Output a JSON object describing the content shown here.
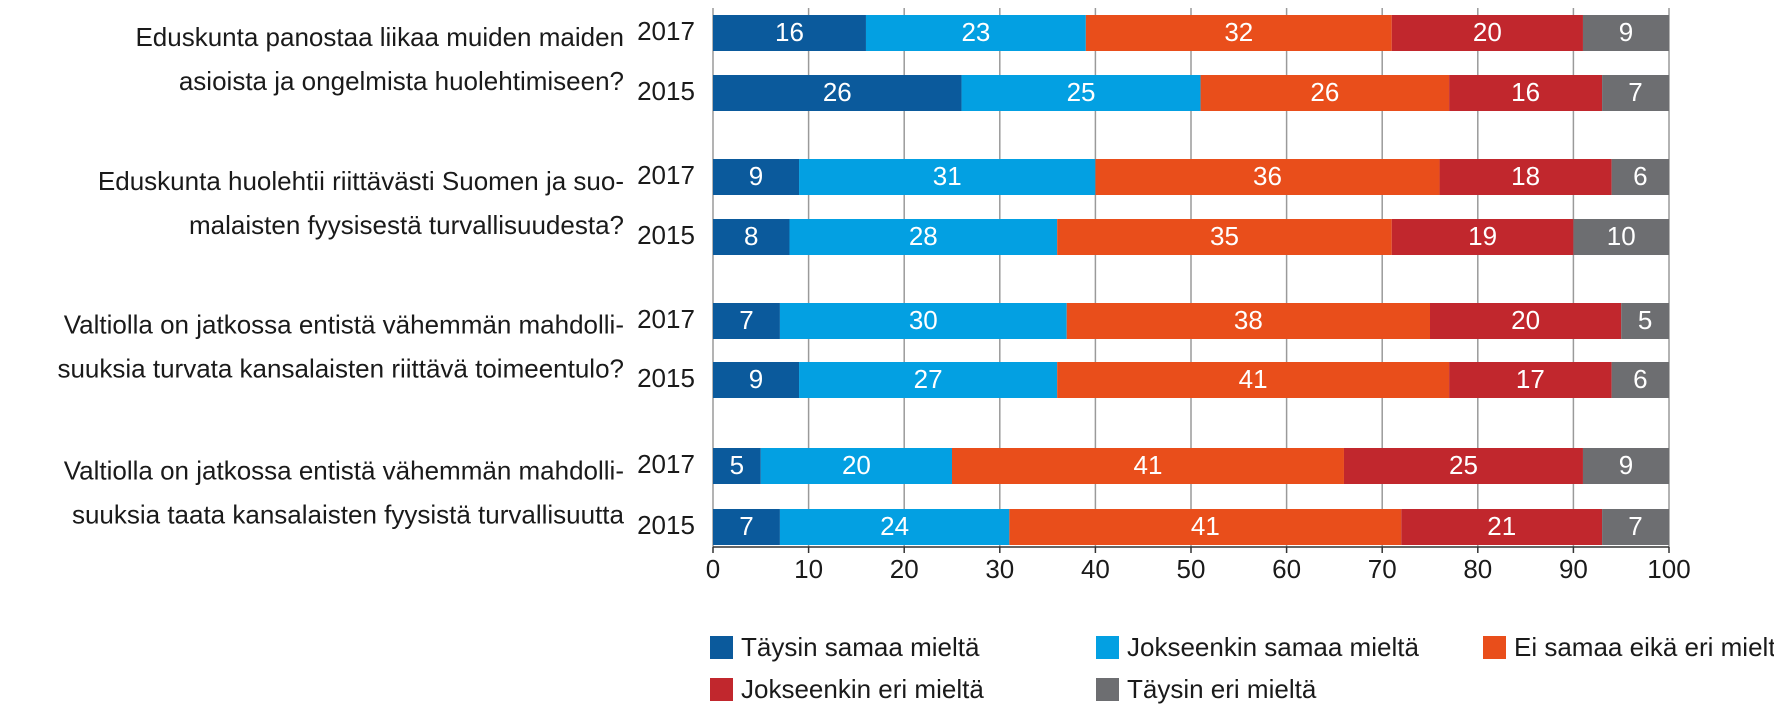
{
  "chart_data": {
    "type": "bar",
    "orientation": "horizontal",
    "stacked": true,
    "questions": [
      [
        "Eduskunta panostaa liikaa muiden maiden",
        "asioista ja ongelmista huolehtimiseen?"
      ],
      [
        "Eduskunta huolehtii riittävästi Suomen ja suo-",
        "malaisten fyysisestä turvallisuudesta?"
      ],
      [
        "Valtiolla on jatkossa entistä vähemmän mahdolli-",
        "suuksia turvata kansalaisten riittävä toimeentulo?"
      ],
      [
        "Valtiolla on jatkossa entistä vähemmän mahdolli-",
        "suuksia taata kansalaisten fyysistä turvallisuutta"
      ]
    ],
    "categories": [
      "2017",
      "2015",
      "2017",
      "2015",
      "2017",
      "2015",
      "2017",
      "2015"
    ],
    "series": [
      {
        "name": "Täysin samaa mieltä",
        "color": "#0b5a9c",
        "values": [
          16,
          26,
          9,
          8,
          7,
          9,
          5,
          7
        ]
      },
      {
        "name": "Jokseenkin samaa mieltä",
        "color": "#03a0e2",
        "values": [
          23,
          25,
          31,
          28,
          30,
          27,
          20,
          24
        ]
      },
      {
        "name": "Ei samaa eikä eri mieltä",
        "color": "#e94e1b",
        "values": [
          32,
          26,
          36,
          35,
          38,
          41,
          41,
          41
        ]
      },
      {
        "name": "Jokseenkin eri mieltä",
        "color": "#c1272d",
        "values": [
          20,
          16,
          18,
          19,
          20,
          17,
          25,
          21
        ]
      },
      {
        "name": "Täysin eri mieltä",
        "color": "#6d6e71",
        "values": [
          9,
          7,
          6,
          10,
          5,
          6,
          9,
          7
        ]
      }
    ],
    "xlim": [
      0,
      100
    ],
    "xticks": [
      0,
      10,
      20,
      30,
      40,
      50,
      60,
      70,
      80,
      90,
      100
    ],
    "grid": true,
    "legend": "bottom"
  }
}
